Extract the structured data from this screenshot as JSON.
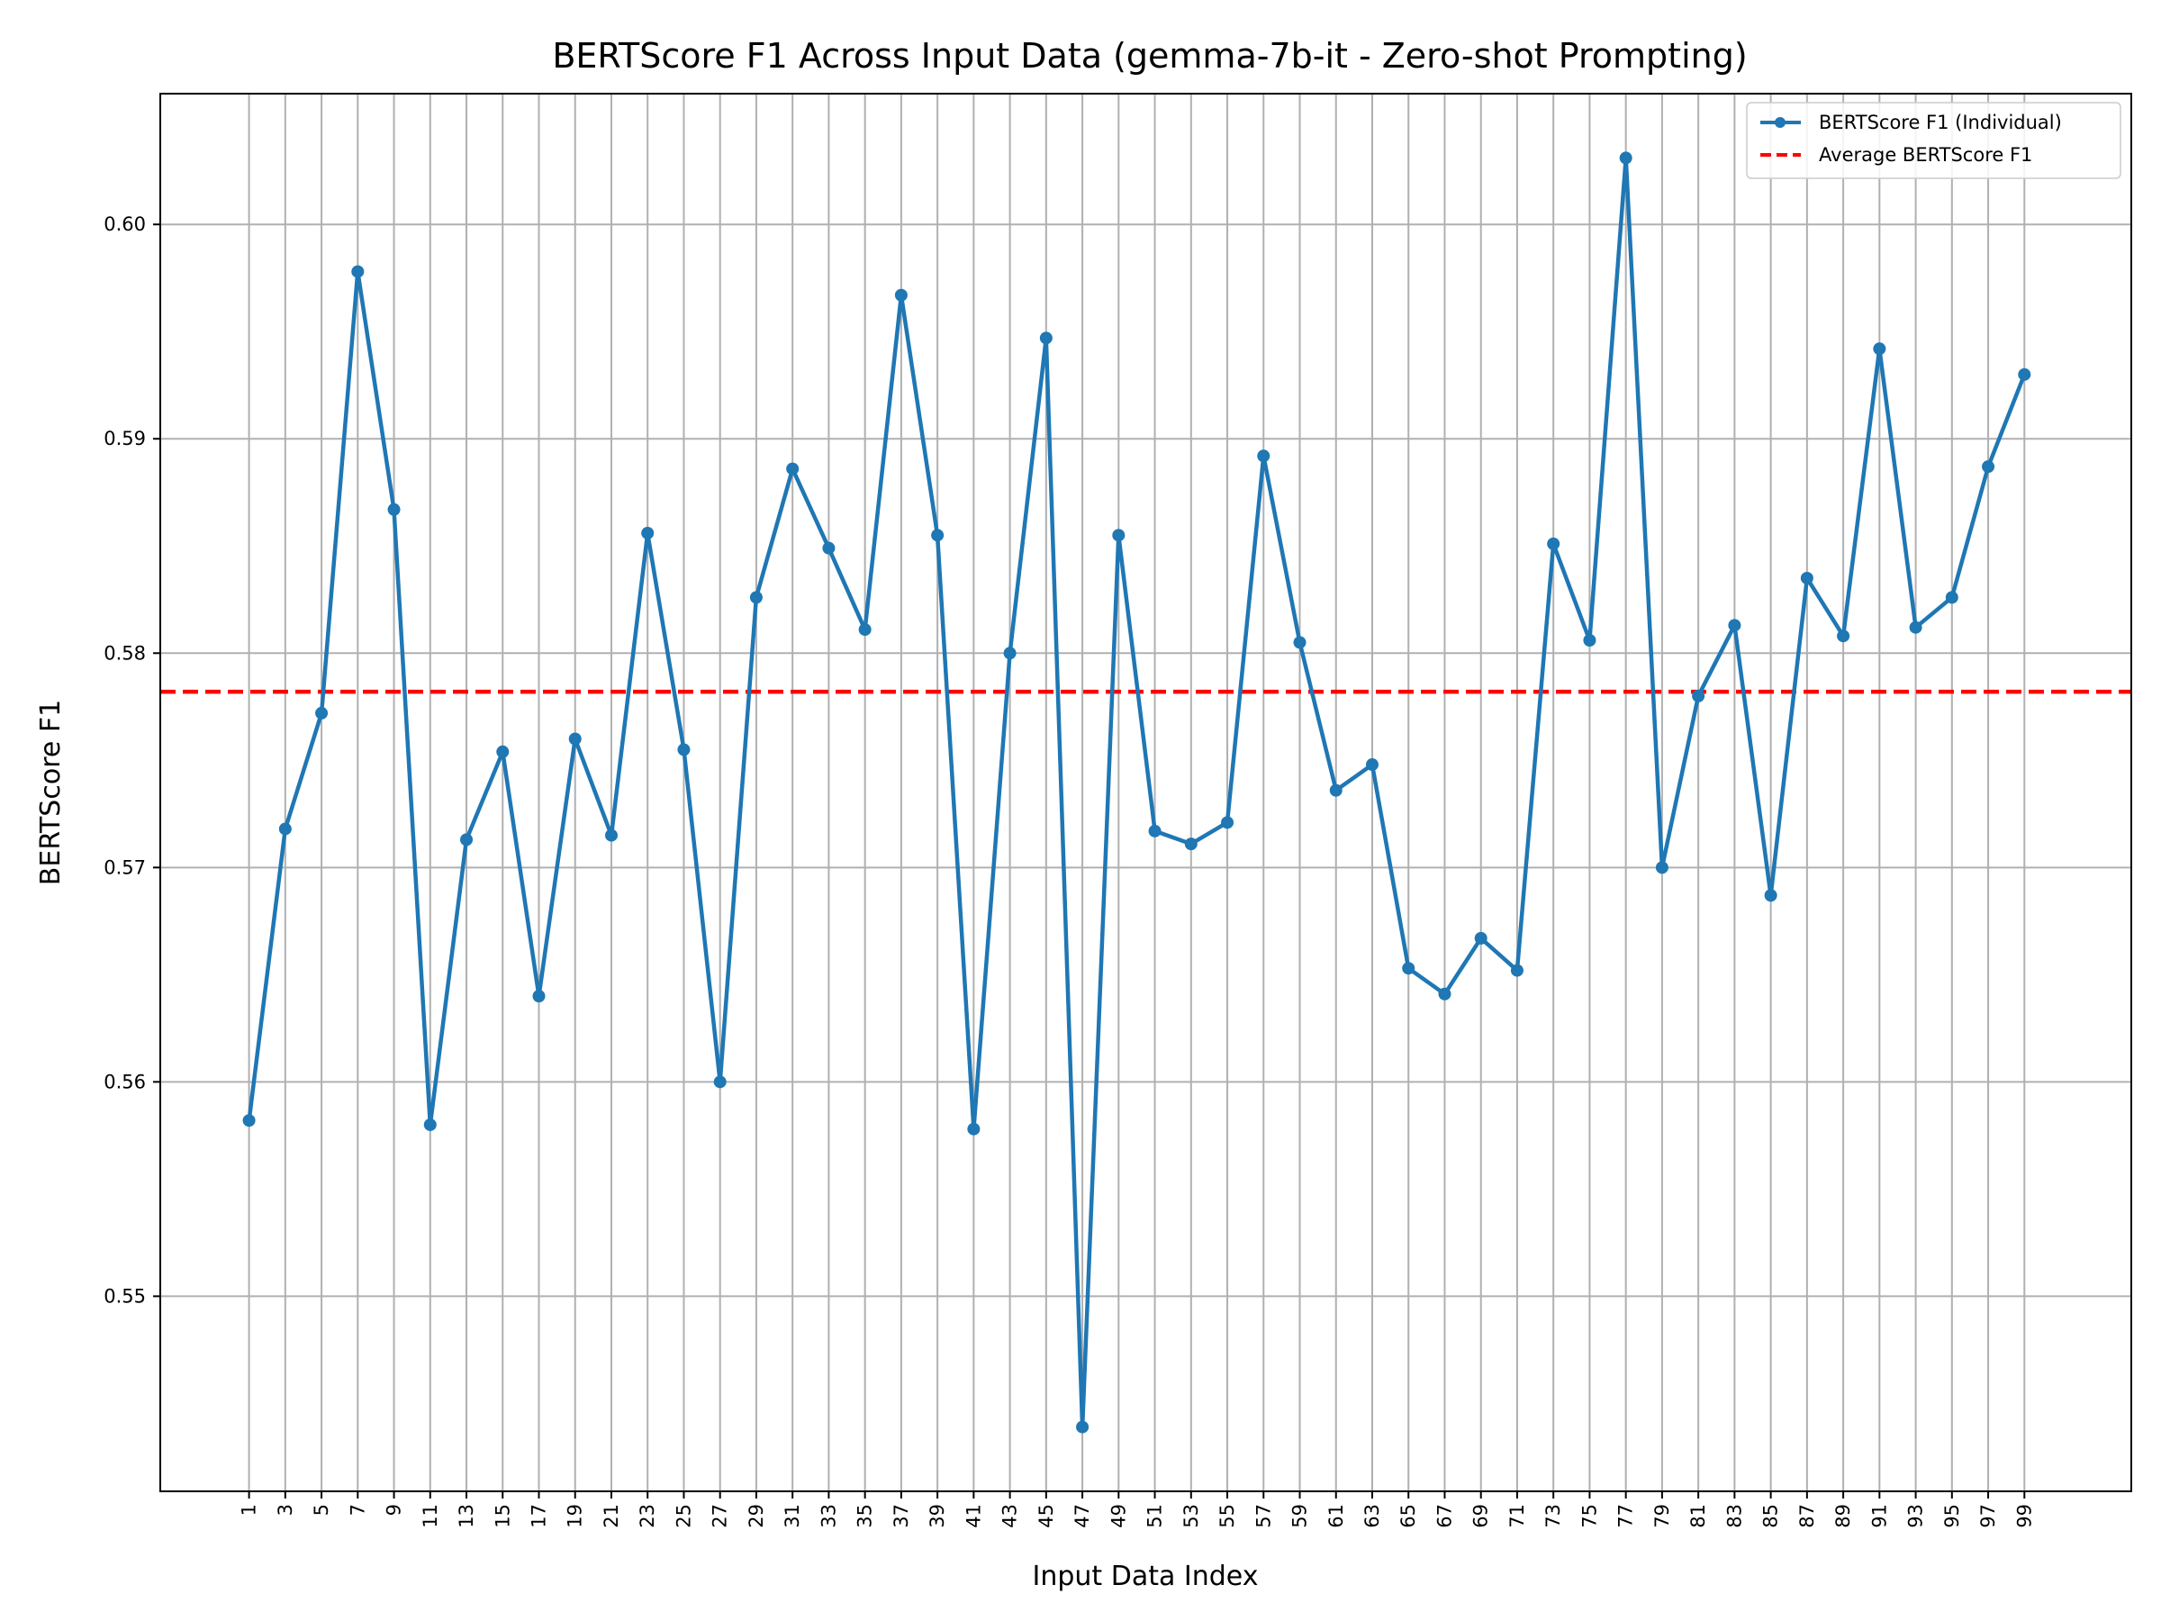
{
  "chart_data": {
    "type": "line",
    "title": "BERTScore F1 Across Input Data (gemma-7b-it - Zero-shot Prompting)",
    "xlabel": "Input Data Index",
    "ylabel": "BERTScore F1",
    "xticks": [
      1,
      3,
      5,
      7,
      9,
      11,
      13,
      15,
      17,
      19,
      21,
      23,
      25,
      27,
      29,
      31,
      33,
      35,
      37,
      39,
      41,
      43,
      45,
      47,
      49,
      51,
      53,
      55,
      57,
      59,
      61,
      63,
      65,
      67,
      69,
      71,
      73,
      75,
      77,
      79,
      81,
      83,
      85,
      87,
      89,
      91,
      93,
      95,
      97,
      99
    ],
    "yticks": [
      "0.55",
      "0.56",
      "0.57",
      "0.58",
      "0.59",
      "0.60"
    ],
    "ylim": [
      0.5409,
      0.6061
    ],
    "xlim": [
      -3.9,
      104.9
    ],
    "grid": true,
    "legend_position": "upper right",
    "series": [
      {
        "name": "BERTScore F1 (Individual)",
        "color": "#1f77b4",
        "style": "line-with-markers",
        "x": [
          1,
          3,
          5,
          7,
          9,
          11,
          13,
          15,
          17,
          19,
          21,
          23,
          25,
          27,
          29,
          31,
          33,
          35,
          37,
          39,
          41,
          43,
          45,
          47,
          49,
          51,
          53,
          55,
          57,
          59,
          61,
          63,
          65,
          67,
          69,
          71,
          73,
          75,
          77,
          79,
          81,
          83,
          85,
          87,
          89,
          91,
          93,
          95,
          97,
          99
        ],
        "y": [
          0.5582,
          0.5718,
          0.5772,
          0.5978,
          0.5867,
          0.558,
          0.5713,
          0.5754,
          0.564,
          0.576,
          0.5715,
          0.5856,
          0.5755,
          0.56,
          0.5826,
          0.5886,
          0.5849,
          0.5811,
          0.5967,
          0.5855,
          0.5578,
          0.58,
          0.5947,
          0.5439,
          0.5855,
          0.5717,
          0.5711,
          0.5721,
          0.5892,
          0.5805,
          0.5736,
          0.5748,
          0.5653,
          0.5641,
          0.5667,
          0.5652,
          0.5851,
          0.5806,
          0.6031,
          0.57,
          0.578,
          0.5813,
          0.5687,
          0.5835,
          0.5808,
          0.5942,
          0.5812,
          0.5826,
          0.5887,
          0.593
        ]
      },
      {
        "name": "Average BERTScore F1",
        "color": "#ff0000",
        "style": "dashed",
        "value": 0.5782
      }
    ]
  }
}
